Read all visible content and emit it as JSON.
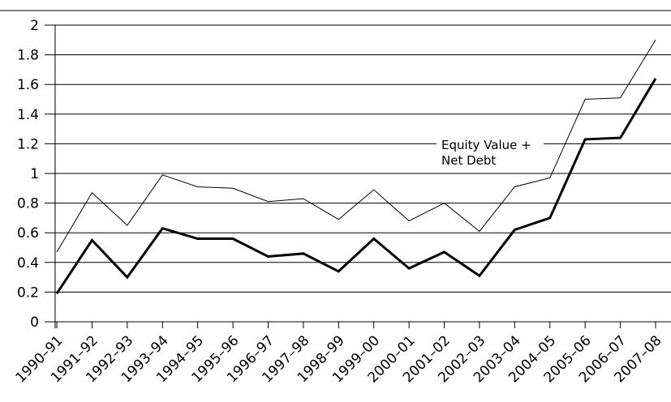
{
  "chart_data": {
    "type": "line",
    "categories": [
      "1990–91",
      "1991–92",
      "1992–93",
      "1993–94",
      "1994–95",
      "1995–96",
      "1996–97",
      "1997–98",
      "1998–99",
      "1999–00",
      "2000–01",
      "2001–02",
      "2002–03",
      "2003–04",
      "2004–05",
      "2005–06",
      "2006–07",
      "2007–08"
    ],
    "series": [
      {
        "name": "Equity Value + Net Debt",
        "color": "#000000",
        "width": 1,
        "values": [
          0.47,
          0.87,
          0.65,
          0.99,
          0.91,
          0.9,
          0.81,
          0.83,
          0.69,
          0.89,
          0.68,
          0.8,
          0.61,
          0.91,
          0.97,
          1.5,
          1.51,
          1.9
        ]
      },
      {
        "color": "#000000",
        "width": 3,
        "values": [
          0.19,
          0.55,
          0.3,
          0.63,
          0.56,
          0.56,
          0.44,
          0.46,
          0.34,
          0.56,
          0.36,
          0.47,
          0.31,
          0.62,
          0.7,
          1.23,
          1.24,
          1.64
        ]
      }
    ],
    "ylim": [
      0,
      2
    ],
    "yticks": [
      0,
      0.2,
      0.4,
      0.6,
      0.8,
      1,
      1.2,
      1.4,
      1.6,
      1.8,
      2
    ],
    "grid": true
  }
}
